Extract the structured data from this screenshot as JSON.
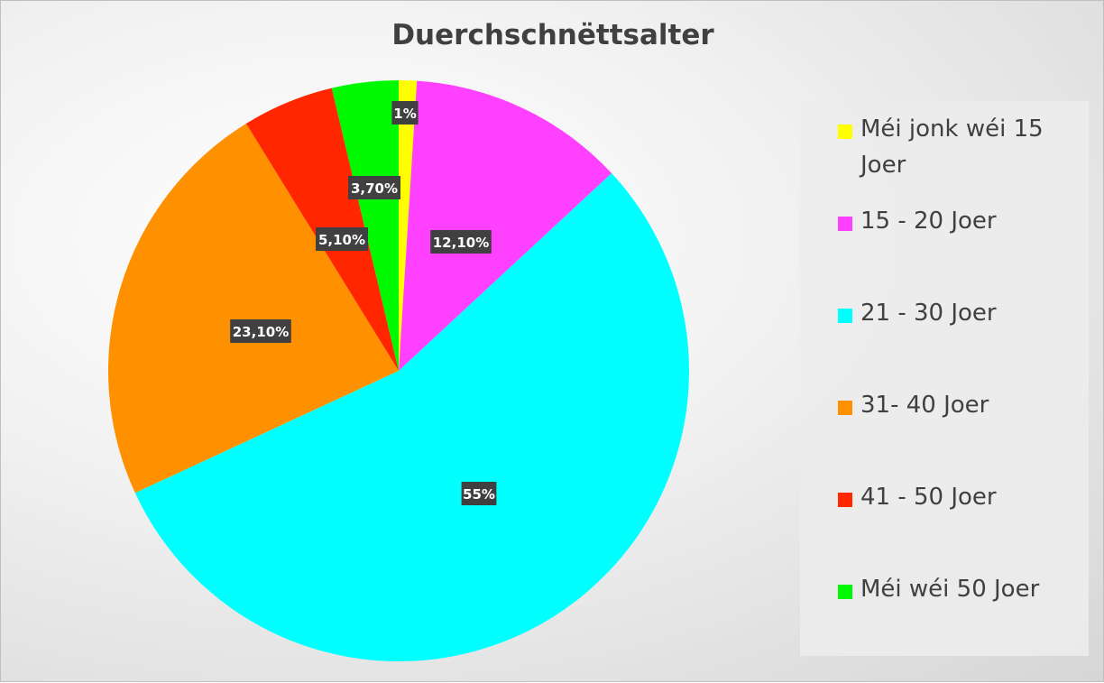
{
  "chart_data": {
    "type": "pie",
    "title": "Duerchschnëttsalter",
    "slices": [
      {
        "label": "Méi jonk wéi 15 Joer",
        "value": 1,
        "display": "1%",
        "color": "#ffff00"
      },
      {
        "label": "15 - 20 Joer",
        "value": 12.1,
        "display": "12,10%",
        "color": "#ff40ff"
      },
      {
        "label": "21 - 30 Joer",
        "value": 55,
        "display": "55%",
        "color": "#00ffff"
      },
      {
        "label": "31- 40 Joer",
        "value": 23.1,
        "display": "23,10%",
        "color": "#ff9100"
      },
      {
        "label": "41 - 50 Joer",
        "value": 5.1,
        "display": "5,10%",
        "color": "#ff2600"
      },
      {
        "label": "Méi wéi 50 Joer",
        "value": 3.7,
        "display": "3,70%",
        "color": "#00f900"
      }
    ],
    "legend_position": "right"
  }
}
